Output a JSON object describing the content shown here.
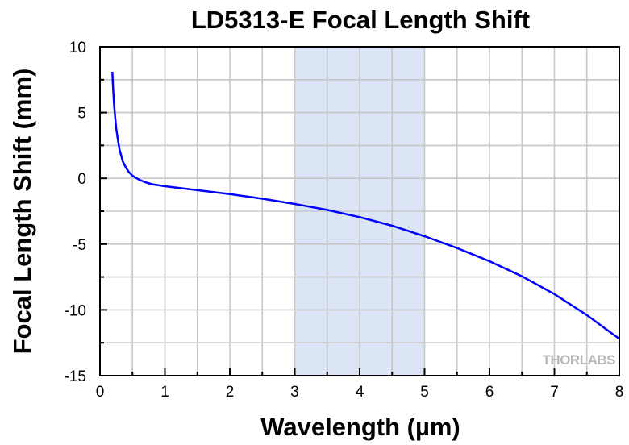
{
  "chart_data": {
    "type": "line",
    "title": "LD5313-E Focal Length Shift",
    "xlabel": "Wavelength (µm)",
    "ylabel": "Focal Length Shift (mm)",
    "xlim": [
      0,
      8
    ],
    "ylim": [
      -15,
      10
    ],
    "xticks": [
      0,
      1,
      2,
      3,
      4,
      5,
      6,
      7,
      8
    ],
    "yticks": [
      10,
      5,
      0,
      -5,
      -10,
      -15
    ],
    "grid": true,
    "highlight_band": {
      "x": [
        3,
        5
      ],
      "color": "#dbe5f6"
    },
    "series": [
      {
        "color": "#0000ff",
        "x": [
          0.19,
          0.2,
          0.22,
          0.25,
          0.28,
          0.3,
          0.35,
          0.4,
          0.45,
          0.5,
          0.55,
          0.6,
          0.7,
          0.8,
          1.0,
          1.5,
          2.0,
          2.5,
          3.0,
          3.5,
          4.0,
          4.5,
          5.0,
          5.5,
          6.0,
          6.5,
          7.0,
          7.5,
          8.0
        ],
        "y": [
          8.1,
          7.0,
          5.4,
          3.8,
          2.8,
          2.2,
          1.3,
          0.8,
          0.45,
          0.2,
          0.05,
          -0.1,
          -0.3,
          -0.45,
          -0.6,
          -0.9,
          -1.2,
          -1.55,
          -1.95,
          -2.4,
          -2.95,
          -3.6,
          -4.4,
          -5.3,
          -6.3,
          -7.45,
          -8.8,
          -10.4,
          -12.2
        ]
      }
    ]
  },
  "logo": {
    "text": "THORLABS",
    "color": "#b8b8b8"
  }
}
